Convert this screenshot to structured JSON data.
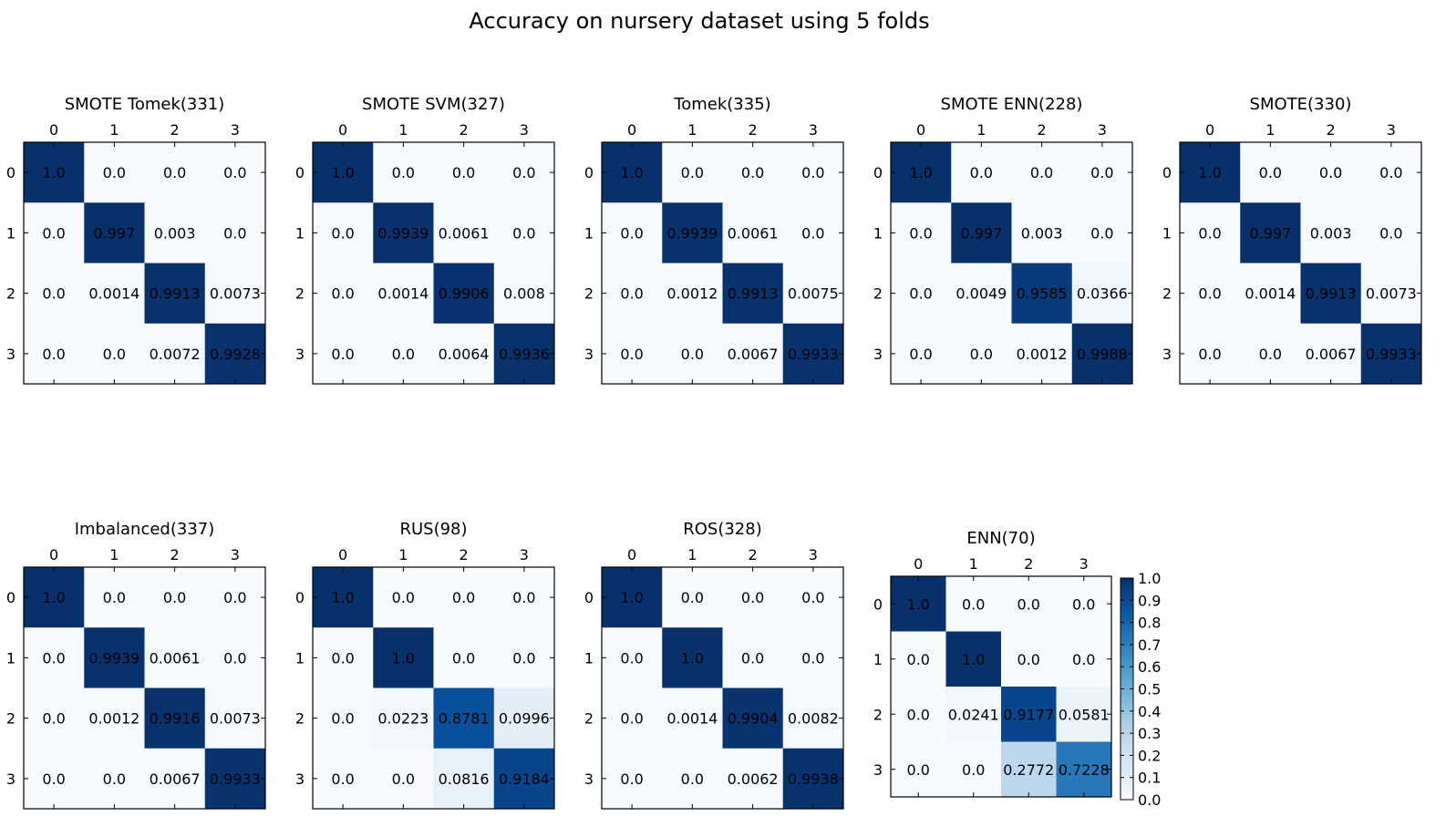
{
  "figure": {
    "title": "Accuracy on nursery dataset using 5 folds"
  },
  "chart_data": [
    {
      "type": "heatmap",
      "title": "SMOTE Tomek(331)",
      "x_ticks": [
        "0",
        "1",
        "2",
        "3"
      ],
      "y_ticks": [
        "0",
        "1",
        "2",
        "3"
      ],
      "cell_labels": [
        [
          "1.0",
          "0.0",
          "0.0",
          "0.0"
        ],
        [
          "0.0",
          "0.997",
          "0.003",
          "0.0"
        ],
        [
          "0.0",
          "0.0014",
          "0.9913",
          "0.0073"
        ],
        [
          "0.0",
          "0.0",
          "0.0072",
          "0.9928"
        ]
      ],
      "values": [
        [
          1.0,
          0.0,
          0.0,
          0.0
        ],
        [
          0.0,
          0.997,
          0.003,
          0.0
        ],
        [
          0.0,
          0.0014,
          0.9913,
          0.0073
        ],
        [
          0.0,
          0.0,
          0.0072,
          0.9928
        ]
      ]
    },
    {
      "type": "heatmap",
      "title": "SMOTE SVM(327)",
      "x_ticks": [
        "0",
        "1",
        "2",
        "3"
      ],
      "y_ticks": [
        "0",
        "1",
        "2",
        "3"
      ],
      "cell_labels": [
        [
          "1.0",
          "0.0",
          "0.0",
          "0.0"
        ],
        [
          "0.0",
          "0.9939",
          "0.0061",
          "0.0"
        ],
        [
          "0.0",
          "0.0014",
          "0.9906",
          "0.008"
        ],
        [
          "0.0",
          "0.0",
          "0.0064",
          "0.9936"
        ]
      ],
      "values": [
        [
          1.0,
          0.0,
          0.0,
          0.0
        ],
        [
          0.0,
          0.9939,
          0.0061,
          0.0
        ],
        [
          0.0,
          0.0014,
          0.9906,
          0.008
        ],
        [
          0.0,
          0.0,
          0.0064,
          0.9936
        ]
      ]
    },
    {
      "type": "heatmap",
      "title": "Tomek(335)",
      "x_ticks": [
        "0",
        "1",
        "2",
        "3"
      ],
      "y_ticks": [
        "0",
        "1",
        "2",
        "3"
      ],
      "cell_labels": [
        [
          "1.0",
          "0.0",
          "0.0",
          "0.0"
        ],
        [
          "0.0",
          "0.9939",
          "0.0061",
          "0.0"
        ],
        [
          "0.0",
          "0.0012",
          "0.9913",
          "0.0075"
        ],
        [
          "0.0",
          "0.0",
          "0.0067",
          "0.9933"
        ]
      ],
      "values": [
        [
          1.0,
          0.0,
          0.0,
          0.0
        ],
        [
          0.0,
          0.9939,
          0.0061,
          0.0
        ],
        [
          0.0,
          0.0012,
          0.9913,
          0.0075
        ],
        [
          0.0,
          0.0,
          0.0067,
          0.9933
        ]
      ]
    },
    {
      "type": "heatmap",
      "title": "SMOTE ENN(228)",
      "x_ticks": [
        "0",
        "1",
        "2",
        "3"
      ],
      "y_ticks": [
        "0",
        "1",
        "2",
        "3"
      ],
      "cell_labels": [
        [
          "1.0",
          "0.0",
          "0.0",
          "0.0"
        ],
        [
          "0.0",
          "0.997",
          "0.003",
          "0.0"
        ],
        [
          "0.0",
          "0.0049",
          "0.9585",
          "0.0366"
        ],
        [
          "0.0",
          "0.0",
          "0.0012",
          "0.9988"
        ]
      ],
      "values": [
        [
          1.0,
          0.0,
          0.0,
          0.0
        ],
        [
          0.0,
          0.997,
          0.003,
          0.0
        ],
        [
          0.0,
          0.0049,
          0.9585,
          0.0366
        ],
        [
          0.0,
          0.0,
          0.0012,
          0.9988
        ]
      ]
    },
    {
      "type": "heatmap",
      "title": "SMOTE(330)",
      "x_ticks": [
        "0",
        "1",
        "2",
        "3"
      ],
      "y_ticks": [
        "0",
        "1",
        "2",
        "3"
      ],
      "cell_labels": [
        [
          "1.0",
          "0.0",
          "0.0",
          "0.0"
        ],
        [
          "0.0",
          "0.997",
          "0.003",
          "0.0"
        ],
        [
          "0.0",
          "0.0014",
          "0.9913",
          "0.0073"
        ],
        [
          "0.0",
          "0.0",
          "0.0067",
          "0.9933"
        ]
      ],
      "values": [
        [
          1.0,
          0.0,
          0.0,
          0.0
        ],
        [
          0.0,
          0.997,
          0.003,
          0.0
        ],
        [
          0.0,
          0.0014,
          0.9913,
          0.0073
        ],
        [
          0.0,
          0.0,
          0.0067,
          0.9933
        ]
      ]
    },
    {
      "type": "heatmap",
      "title": "Imbalanced(337)",
      "x_ticks": [
        "0",
        "1",
        "2",
        "3"
      ],
      "y_ticks": [
        "0",
        "1",
        "2",
        "3"
      ],
      "cell_labels": [
        [
          "1.0",
          "0.0",
          "0.0",
          "0.0"
        ],
        [
          "0.0",
          "0.9939",
          "0.0061",
          "0.0"
        ],
        [
          "0.0",
          "0.0012",
          "0.9916",
          "0.0073"
        ],
        [
          "0.0",
          "0.0",
          "0.0067",
          "0.9933"
        ]
      ],
      "values": [
        [
          1.0,
          0.0,
          0.0,
          0.0
        ],
        [
          0.0,
          0.9939,
          0.0061,
          0.0
        ],
        [
          0.0,
          0.0012,
          0.9916,
          0.0073
        ],
        [
          0.0,
          0.0,
          0.0067,
          0.9933
        ]
      ]
    },
    {
      "type": "heatmap",
      "title": "RUS(98)",
      "x_ticks": [
        "0",
        "1",
        "2",
        "3"
      ],
      "y_ticks": [
        "0",
        "1",
        "2",
        "3"
      ],
      "cell_labels": [
        [
          "1.0",
          "0.0",
          "0.0",
          "0.0"
        ],
        [
          "0.0",
          "1.0",
          "0.0",
          "0.0"
        ],
        [
          "0.0",
          "0.0223",
          "0.8781",
          "0.0996"
        ],
        [
          "0.0",
          "0.0",
          "0.0816",
          "0.9184"
        ]
      ],
      "values": [
        [
          1.0,
          0.0,
          0.0,
          0.0
        ],
        [
          0.0,
          1.0,
          0.0,
          0.0
        ],
        [
          0.0,
          0.0223,
          0.8781,
          0.0996
        ],
        [
          0.0,
          0.0,
          0.0816,
          0.9184
        ]
      ]
    },
    {
      "type": "heatmap",
      "title": "ROS(328)",
      "x_ticks": [
        "0",
        "1",
        "2",
        "3"
      ],
      "y_ticks": [
        "0",
        "1",
        "2",
        "3"
      ],
      "cell_labels": [
        [
          "1.0",
          "0.0",
          "0.0",
          "0.0"
        ],
        [
          "0.0",
          "1.0",
          "0.0",
          "0.0"
        ],
        [
          "0.0",
          "0.0014",
          "0.9904",
          "0.0082"
        ],
        [
          "0.0",
          "0.0",
          "0.0062",
          "0.9938"
        ]
      ],
      "values": [
        [
          1.0,
          0.0,
          0.0,
          0.0
        ],
        [
          0.0,
          1.0,
          0.0,
          0.0
        ],
        [
          0.0,
          0.0014,
          0.9904,
          0.0082
        ],
        [
          0.0,
          0.0,
          0.0062,
          0.9938
        ]
      ]
    },
    {
      "type": "heatmap",
      "title": "ENN(70)",
      "x_ticks": [
        "0",
        "1",
        "2",
        "3"
      ],
      "y_ticks": [
        "0",
        "1",
        "2",
        "3"
      ],
      "cell_labels": [
        [
          "1.0",
          "0.0",
          "0.0",
          "0.0"
        ],
        [
          "0.0",
          "1.0",
          "0.0",
          "0.0"
        ],
        [
          "0.0",
          "0.0241",
          "0.9177",
          "0.0581"
        ],
        [
          "0.0",
          "0.0",
          "0.2772",
          "0.7228"
        ]
      ],
      "values": [
        [
          1.0,
          0.0,
          0.0,
          0.0
        ],
        [
          0.0,
          1.0,
          0.0,
          0.0
        ],
        [
          0.0,
          0.0241,
          0.9177,
          0.0581
        ],
        [
          0.0,
          0.0,
          0.2772,
          0.7228
        ]
      ]
    }
  ],
  "colorbar": {
    "colormap": "Blues",
    "range": [
      0.0,
      1.0
    ],
    "ticks": [
      "1.0",
      "0.9",
      "0.8",
      "0.7",
      "0.6",
      "0.5",
      "0.4",
      "0.3",
      "0.2",
      "0.1",
      "0.0"
    ],
    "tick_values": [
      1.0,
      0.9,
      0.8,
      0.7,
      0.6,
      0.5,
      0.4,
      0.3,
      0.2,
      0.1,
      0.0
    ]
  },
  "colors": {
    "text_on_light": "#000000",
    "text_on_dark": "#000000",
    "frame": "#000000",
    "background": "#ffffff"
  }
}
